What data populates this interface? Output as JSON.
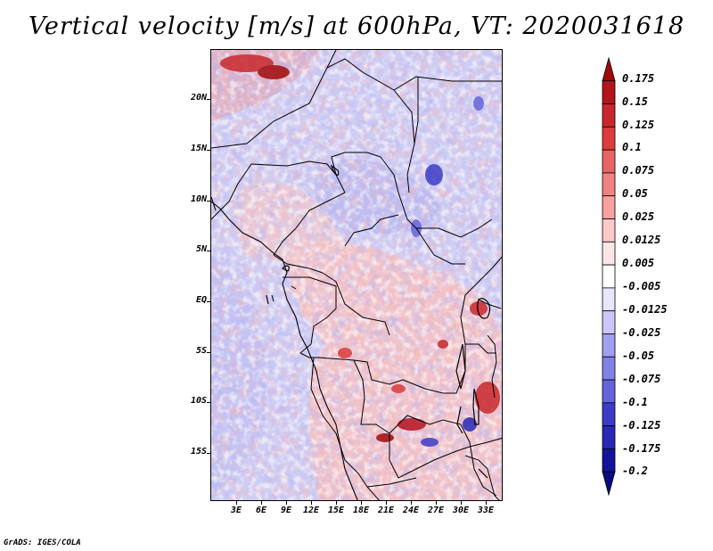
{
  "title": "Vertical velocity [m/s] at 600hPa, VT: 2020031618",
  "footer": "GrADS: IGES/COLA",
  "latitude_labels": [
    "20N",
    "15N",
    "10N",
    "5N",
    "EQ",
    "5S",
    "10S",
    "15S"
  ],
  "longitude_labels": [
    "3E",
    "6E",
    "9E",
    "12E",
    "15E",
    "18E",
    "21E",
    "24E",
    "27E",
    "30E",
    "33E"
  ],
  "colorbar": {
    "labels": [
      "0.175",
      "0.15",
      "0.125",
      "0.1",
      "0.075",
      "0.05",
      "0.025",
      "0.0125",
      "0.005",
      "-0.005",
      "-0.0125",
      "-0.025",
      "-0.05",
      "-0.075",
      "-0.1",
      "-0.125",
      "-0.175",
      "-0.2"
    ],
    "colors": [
      "#a00a0a",
      "#b4141e",
      "#c8282d",
      "#dc3c3c",
      "#e66464",
      "#f08282",
      "#faa0a0",
      "#fcc8c8",
      "#ffe6e6",
      "#ffffff",
      "#e6e6ff",
      "#c8c8fa",
      "#a0a0f0",
      "#8282e6",
      "#6464dc",
      "#3c3cc8",
      "#2828b4",
      "#14149b",
      "#0a0a82"
    ]
  },
  "map": {
    "variable": "Vertical velocity",
    "units": "m/s",
    "level": "600hPa",
    "valid_time": "2020031618"
  }
}
